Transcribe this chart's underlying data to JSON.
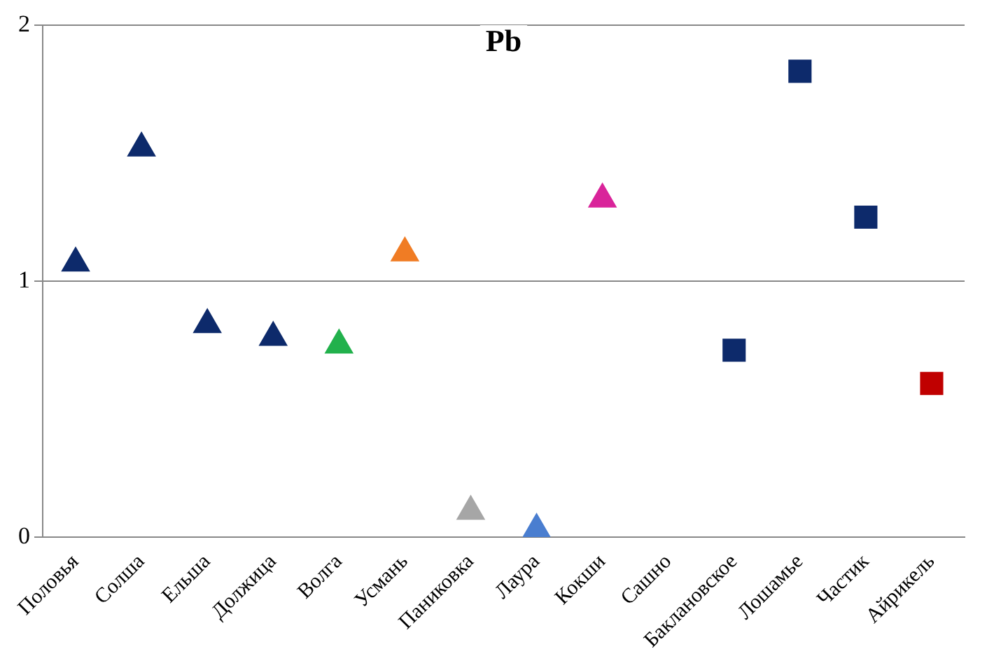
{
  "chart_data": {
    "type": "scatter",
    "title": "Pb",
    "categories": [
      "Половья",
      "Солша",
      "Ельша",
      "Должица",
      "Волга",
      "Усмань",
      "Паниковка",
      "Лаура",
      "Кокши",
      "Сашно",
      "Баклановское",
      "Лошамье",
      "Частик",
      "Айрикель"
    ],
    "series": [
      {
        "marker": "triangle",
        "colors": [
          "#0d2a6b",
          "#0d2a6b",
          "#0d2a6b",
          "#0d2a6b",
          "#22b14c",
          "#f07c24",
          "#a6a6a6",
          "#4a7ed0",
          "#d9249a",
          null,
          null,
          null,
          null,
          null
        ],
        "values": [
          1.07,
          1.52,
          0.83,
          0.78,
          0.75,
          1.11,
          0.1,
          0.03,
          1.32,
          null,
          null,
          null,
          null,
          null
        ]
      },
      {
        "marker": "square",
        "colors": [
          null,
          null,
          null,
          null,
          null,
          null,
          null,
          null,
          null,
          null,
          "#0d2a6b",
          "#0d2a6b",
          "#0d2a6b",
          "#c00000"
        ],
        "values": [
          null,
          null,
          null,
          null,
          null,
          null,
          null,
          null,
          null,
          null,
          0.73,
          1.82,
          1.25,
          0.6
        ]
      }
    ],
    "ylim": [
      0,
      2
    ],
    "yticks": [
      0,
      1,
      2
    ],
    "grid": "y",
    "legend": false
  }
}
